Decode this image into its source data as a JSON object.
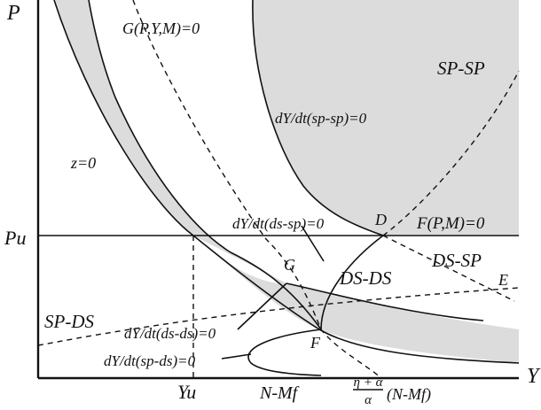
{
  "axes": {
    "y_label": "P",
    "x_label": "Y"
  },
  "levels": {
    "p_level": "Pu",
    "y_level": "Yu"
  },
  "curves": {
    "g_curve": "G(P,Y,M)=0",
    "z_curve": "z=0",
    "f_curve": "F(P,M)=0",
    "sp_sp_curve": "dY/dt(sp-sp)=0",
    "ds_sp_curve": "dY/dt(ds-sp)=0",
    "ds_ds_curve": "dY/dt(ds-ds)=0",
    "sp_ds_curve": "dY/dt(sp-ds)=0"
  },
  "regions": {
    "sp_sp": "SP-SP",
    "ds_sp": "DS-SP",
    "ds_ds": "DS-DS",
    "sp_ds": "SP-DS"
  },
  "points": {
    "d": "D",
    "g": "G",
    "e": "E",
    "f": "F"
  },
  "x_ticks": {
    "nmf": "N-Mf",
    "fraction_numerator": "η + α",
    "fraction_denominator": "α",
    "fraction_suffix": "(N-Mf)"
  }
}
